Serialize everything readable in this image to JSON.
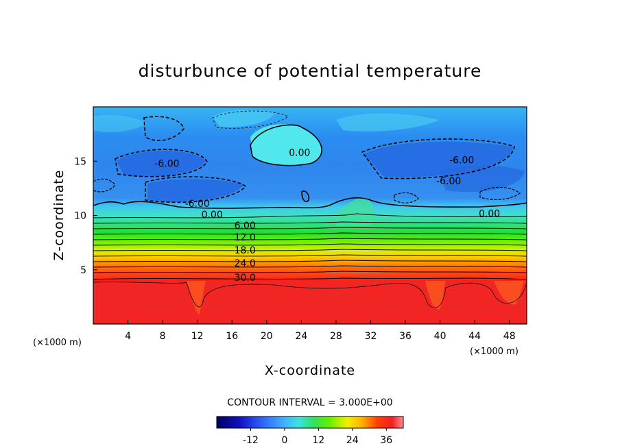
{
  "chart_data": {
    "type": "heatmap",
    "title": "disturbunce of potential temperature",
    "xlabel": "X-coordinate",
    "ylabel": "Z-coordinate",
    "x_unit": "(×1000 m)",
    "z_unit": "(×1000 m)",
    "xlim": [
      0,
      50
    ],
    "ylim": [
      0,
      20
    ],
    "x_ticks": [
      "4",
      "8",
      "12",
      "16",
      "20",
      "24",
      "28",
      "32",
      "36",
      "40",
      "44",
      "48"
    ],
    "y_ticks": [
      "5",
      "10",
      "15"
    ],
    "contour_interval_text": "CONTOUR INTERVAL = 3.000E+00",
    "contour_labels": [
      {
        "text": "-6.00",
        "x": 8.5,
        "z": 14.8
      },
      {
        "text": "-6.00",
        "x": 12.0,
        "z": 11.1
      },
      {
        "text": "0.00",
        "x": 23.8,
        "z": 15.8
      },
      {
        "text": "-6.00",
        "x": 42.5,
        "z": 15.1
      },
      {
        "text": "-6.00",
        "x": 41.0,
        "z": 13.2
      },
      {
        "text": "0.00",
        "x": 13.7,
        "z": 10.1
      },
      {
        "text": "0.00",
        "x": 45.7,
        "z": 10.2
      },
      {
        "text": "6.00",
        "x": 17.5,
        "z": 9.1
      },
      {
        "text": "12.0",
        "x": 17.5,
        "z": 8.0
      },
      {
        "text": "18.0",
        "x": 17.5,
        "z": 6.8
      },
      {
        "text": "24.0",
        "x": 17.5,
        "z": 5.6
      },
      {
        "text": "30.0",
        "x": 17.5,
        "z": 4.3
      }
    ],
    "colorbar": {
      "range": [
        -24,
        42
      ],
      "ticks": [
        "-12",
        "0",
        "12",
        "24",
        "36"
      ]
    },
    "colors": {
      "deep_blue": "#2060e0",
      "blue": "#1e90ff",
      "cyan": "#40e0f0",
      "green": "#30e080",
      "yellow": "#e8f000",
      "orange": "#ff8000",
      "red": "#f02020"
    }
  }
}
